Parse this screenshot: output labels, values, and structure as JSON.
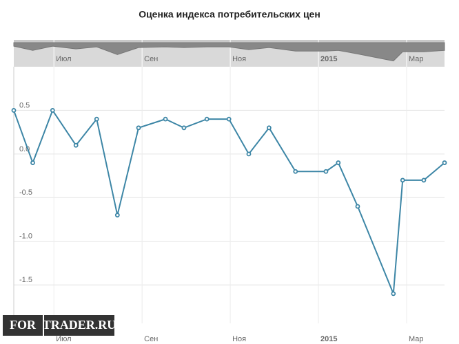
{
  "chart_data": {
    "type": "line",
    "title": "Оценка индекса потребительских цен",
    "x": [
      6.09,
      6.52,
      6.97,
      7.5,
      7.97,
      8.44,
      8.92,
      9.53,
      9.95,
      10.47,
      10.97,
      11.42,
      11.88,
      12.48,
      13.17,
      13.45,
      13.89,
      14.7,
      14.91,
      15.39,
      15.86
    ],
    "series": [
      {
        "color": "#3d86a6",
        "values": [
          0.5,
          -0.1,
          0.5,
          0.1,
          0.4,
          -0.7,
          0.3,
          0.4,
          0.3,
          0.4,
          0.4,
          0.0,
          0.3,
          -0.2,
          -0.2,
          -0.1,
          -0.6,
          -1.6,
          -0.3,
          -0.3,
          -0.1
        ]
      }
    ],
    "xlim": [
      6.09,
      15.86
    ],
    "xticks": [
      {
        "value": 7,
        "label": "Июл"
      },
      {
        "value": 9,
        "label": "Сен"
      },
      {
        "value": 11,
        "label": "Ноя"
      },
      {
        "value": 13,
        "label": "2015"
      },
      {
        "value": 15,
        "label": "Мар"
      }
    ],
    "ylim": [
      -1.94,
      1.0
    ],
    "yticks": [
      0.5,
      {
        "value": 0,
        "label": "0.0"
      },
      -0.5,
      {
        "value": -1,
        "label": "-1.0"
      },
      -1.5
    ],
    "grid": true,
    "watermark": [
      "FOR",
      "TRADER.RU"
    ]
  }
}
